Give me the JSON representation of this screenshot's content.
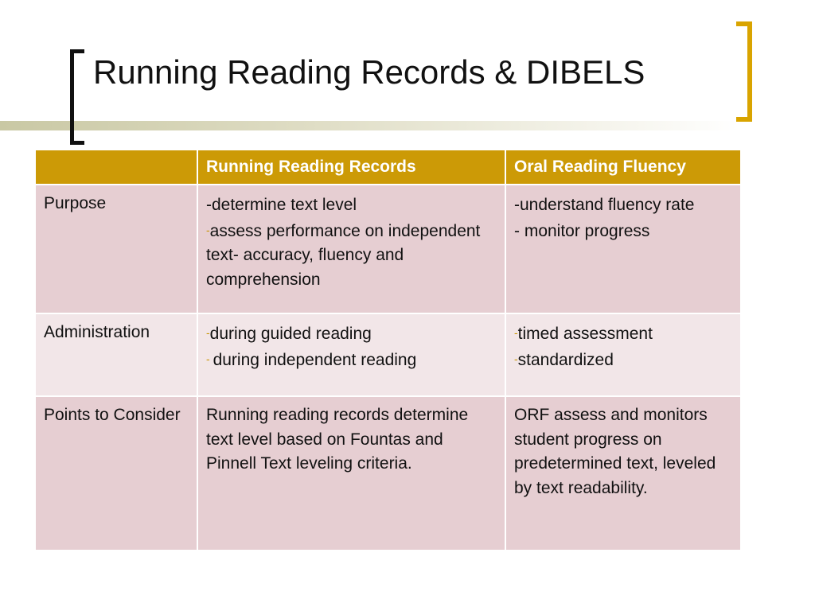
{
  "slide": {
    "title": "Running Reading Records & DIBELS"
  },
  "table": {
    "headers": [
      "",
      "Running Reading Records",
      "Oral Reading Fluency"
    ],
    "rows": [
      {
        "label": "Purpose",
        "rrr": [
          {
            "dash": "",
            "text": "-determine text level"
          },
          {
            "dash": "-",
            "text": "assess performance on independent text- accuracy, fluency and comprehension"
          }
        ],
        "orf": [
          {
            "dash": "",
            "text": "-understand fluency rate"
          },
          {
            "dash": "",
            "text": "- monitor progress"
          }
        ]
      },
      {
        "label": "Administration",
        "rrr": [
          {
            "dash": "-",
            "text": "during guided reading"
          },
          {
            "dash": "- ",
            "text": "during independent reading"
          }
        ],
        "orf": [
          {
            "dash": "-",
            "text": "timed assessment"
          },
          {
            "dash": "-",
            "text": "standardized"
          }
        ]
      },
      {
        "label": "Points to Consider",
        "rrr": [
          {
            "dash": "",
            "text": "Running reading records determine text level based on Fountas and Pinnell Text leveling criteria."
          }
        ],
        "orf": [
          {
            "dash": "",
            "text": "ORF assess and monitors student progress on predetermined text, leveled by text readability."
          }
        ]
      }
    ]
  },
  "colors": {
    "header_bg": "#cc9a06",
    "row_dark": "#e6ced2",
    "row_light": "#f2e6e8",
    "bracket_right": "#d9a400",
    "bracket_left": "#111111"
  }
}
